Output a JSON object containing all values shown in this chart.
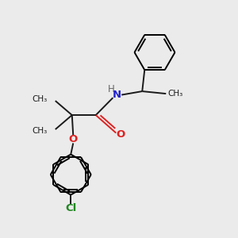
{
  "background_color": "#ebebeb",
  "bond_color": "#1a1a1a",
  "atom_colors": {
    "N": "#2222cc",
    "O": "#dd2222",
    "Cl": "#228822",
    "H": "#666666"
  },
  "figsize": [
    3.0,
    3.0
  ],
  "dpi": 100,
  "xlim": [
    0,
    10
  ],
  "ylim": [
    0,
    10
  ]
}
